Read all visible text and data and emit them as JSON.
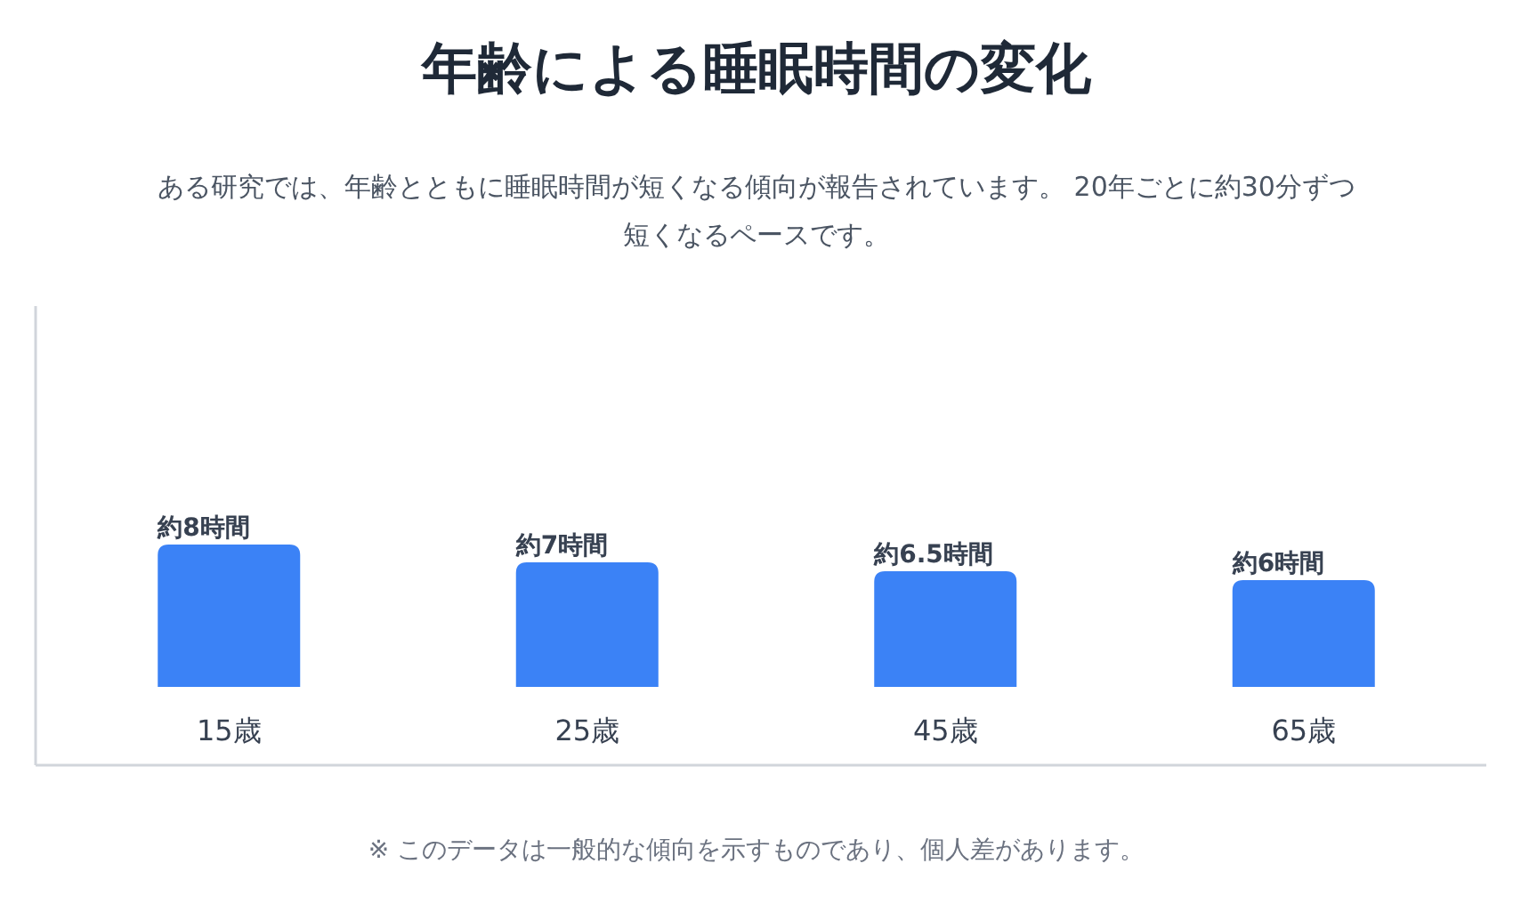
{
  "chart_data": {
    "type": "bar",
    "title": "年齢による睡眠時間の変化",
    "subtitle": "ある研究では、年齢とともに睡眠時間が短くなる傾向が報告されています。 20年ごとに約30分ずつ短くなるペースです。",
    "categories": [
      "15歳",
      "25歳",
      "45歳",
      "65歳"
    ],
    "values": [
      8,
      7,
      6.5,
      6
    ],
    "value_labels": [
      "約8時間",
      "約7時間",
      "約6.5時間",
      "約6時間"
    ],
    "color": "#3b82f6",
    "annotations": [
      "※ このデータは一般的な傾向を示すものであり、個人差があります。"
    ]
  }
}
